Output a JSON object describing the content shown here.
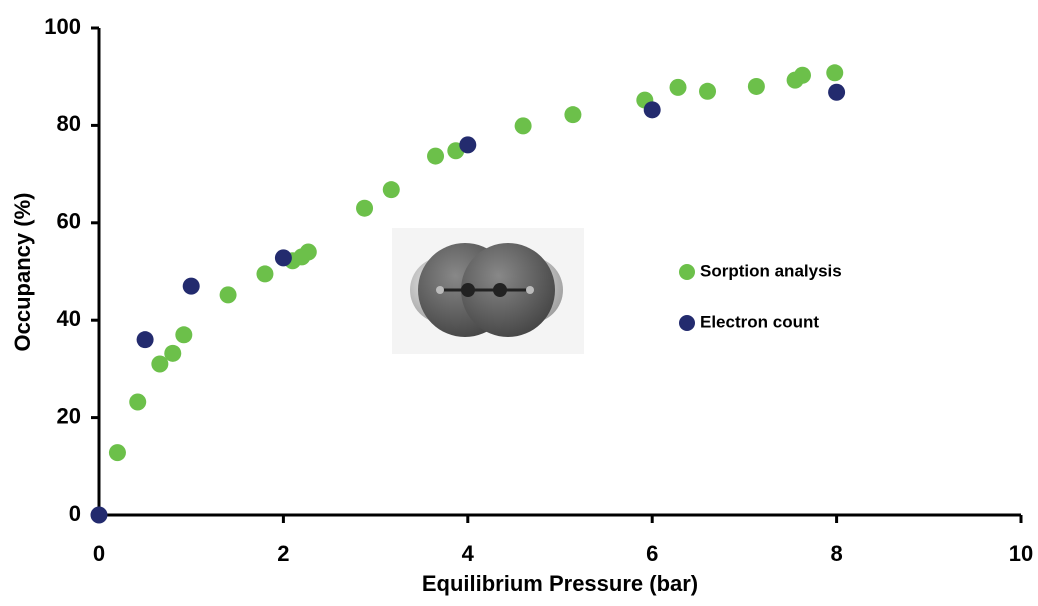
{
  "chart_data": {
    "type": "scatter",
    "xlabel": "Equilibrium Pressure (bar)",
    "ylabel": "Occupancy (%)",
    "xlim": [
      0,
      10
    ],
    "ylim": [
      0,
      100
    ],
    "xticks": [
      0,
      2,
      4,
      6,
      8,
      10
    ],
    "yticks": [
      0,
      20,
      40,
      60,
      80,
      100
    ],
    "series": [
      {
        "name": "Sorption analysis",
        "color": "#6cc04a",
        "x": [
          0.2,
          0.42,
          0.66,
          0.8,
          0.92,
          1.4,
          1.8,
          2.1,
          2.2,
          2.27,
          2.88,
          3.17,
          3.65,
          3.87,
          4.6,
          5.14,
          5.92,
          6.28,
          6.6,
          7.13,
          7.55,
          7.63,
          7.98
        ],
        "values": [
          12.8,
          23.2,
          31,
          33.2,
          37,
          45.2,
          49.5,
          52.2,
          53,
          54,
          63,
          66.8,
          73.7,
          74.8,
          79.9,
          82.2,
          85.2,
          87.8,
          87,
          88,
          89.3,
          90.3,
          90.8
        ]
      },
      {
        "name": "Electron count",
        "color": "#232b6e",
        "x": [
          0,
          0.5,
          1,
          2,
          4,
          6,
          8
        ],
        "values": [
          0,
          36,
          47,
          52.8,
          76,
          83.2,
          86.8
        ]
      }
    ]
  }
}
